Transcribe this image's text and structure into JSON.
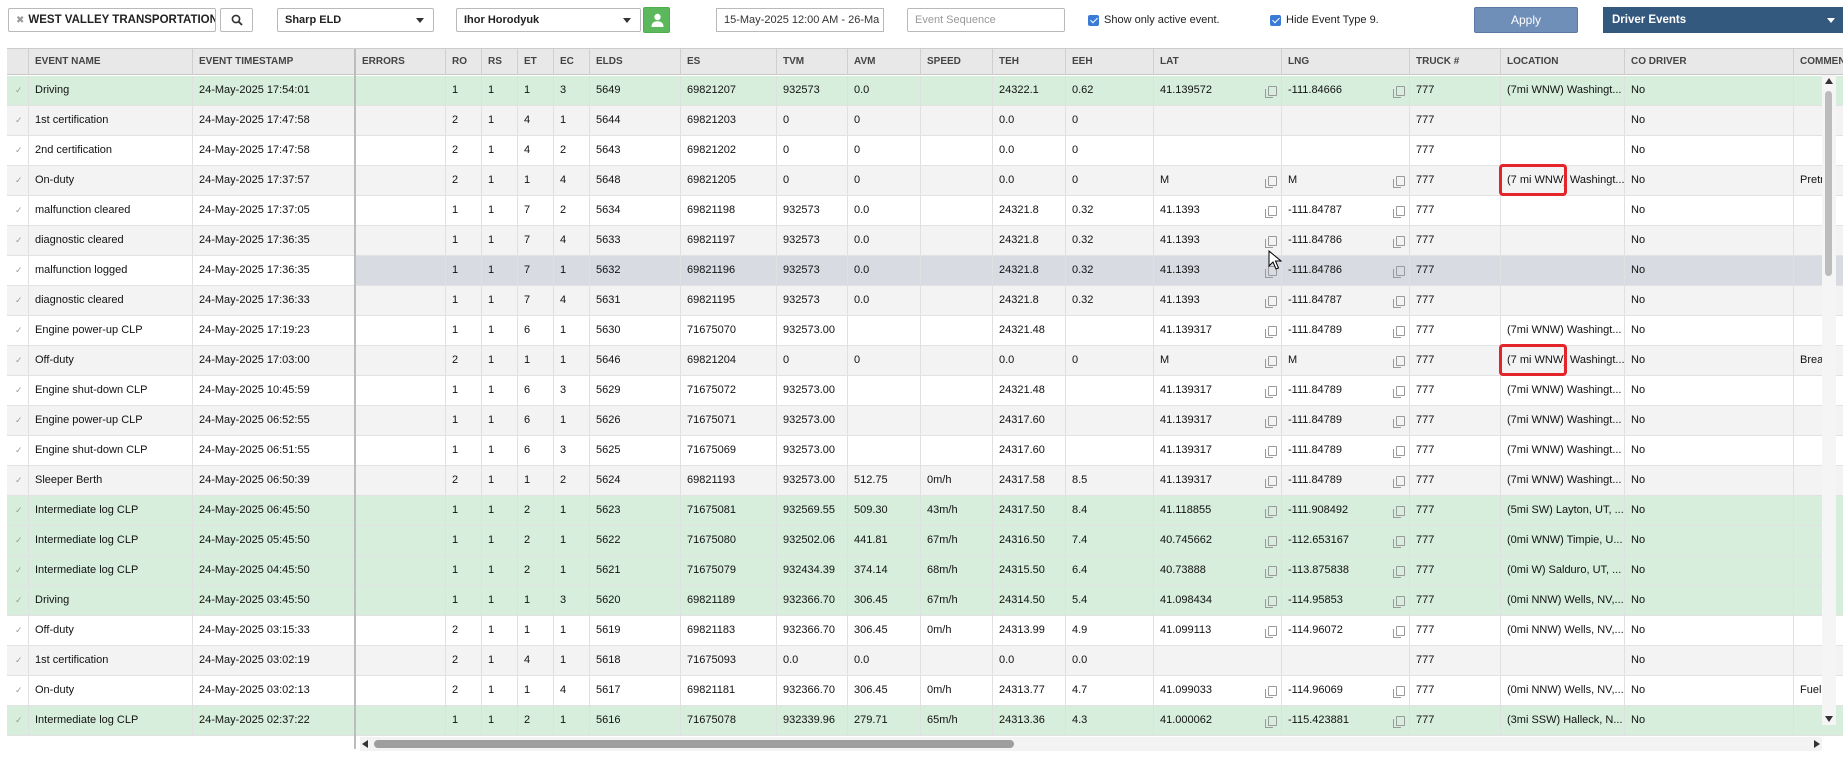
{
  "toolbar": {
    "company": "WEST VALLEY TRANSPORTATION ...",
    "eld": "Sharp ELD",
    "driver": "Ihor Horodyuk",
    "date_range": "15-May-2025 12:00 AM - 26-Ma",
    "event_sequence_placeholder": "Event Sequence",
    "show_active_label": "Show only active event.",
    "hide_type9_label": "Hide Event Type 9.",
    "apply_label": "Apply",
    "view_label": "Driver Events"
  },
  "columns": [
    "",
    "EVENT NAME",
    "EVENT TIMESTAMP",
    "ERRORS",
    "RO",
    "RS",
    "ET",
    "EC",
    "ELDS",
    "ES",
    "TVM",
    "AVM",
    "SPEED",
    "TEH",
    "EEH",
    "LAT",
    "LNG",
    "TRUCK #",
    "LOCATION",
    "CO DRIVER",
    "COMMEN"
  ],
  "rows": [
    {
      "style": "green",
      "name": "Driving",
      "ts": "24-May-2025 17:54:01",
      "ro": "1",
      "rs": "1",
      "et": "1",
      "ec": "3",
      "elds": "5649",
      "es": "69821207",
      "tvm": "932573",
      "avm": "0.0",
      "speed": "",
      "teh": "24322.1",
      "eeh": "0.62",
      "lat": "41.139572",
      "lng": "-111.84666",
      "truck": "777",
      "loc": "(7mi WNW) Washingt...",
      "co": "No",
      "com": ""
    },
    {
      "style": "gray",
      "name": "1st certification",
      "ts": "24-May-2025 17:47:58",
      "ro": "2",
      "rs": "1",
      "et": "4",
      "ec": "1",
      "elds": "5644",
      "es": "69821203",
      "tvm": "0",
      "avm": "0",
      "speed": "",
      "teh": "0.0",
      "eeh": "0",
      "lat": "",
      "lng": "",
      "truck": "777",
      "loc": "",
      "co": "No",
      "com": ""
    },
    {
      "style": "white",
      "name": "2nd certification",
      "ts": "24-May-2025 17:47:58",
      "ro": "2",
      "rs": "1",
      "et": "4",
      "ec": "2",
      "elds": "5643",
      "es": "69821202",
      "tvm": "0",
      "avm": "0",
      "speed": "",
      "teh": "0.0",
      "eeh": "0",
      "lat": "",
      "lng": "",
      "truck": "777",
      "loc": "",
      "co": "No",
      "com": ""
    },
    {
      "style": "gray",
      "name": "On-duty",
      "ts": "24-May-2025 17:37:57",
      "ro": "2",
      "rs": "1",
      "et": "1",
      "ec": "4",
      "elds": "5648",
      "es": "69821205",
      "tvm": "0",
      "avm": "0",
      "speed": "",
      "teh": "0.0",
      "eeh": "0",
      "lat": "M",
      "lng": "M",
      "truck": "777",
      "loc": "(7 mi WNW) Washingt...",
      "co": "No",
      "com": "Pretri"
    },
    {
      "style": "white",
      "name": "malfunction cleared",
      "ts": "24-May-2025 17:37:05",
      "ro": "1",
      "rs": "1",
      "et": "7",
      "ec": "2",
      "elds": "5634",
      "es": "69821198",
      "tvm": "932573",
      "avm": "0.0",
      "speed": "",
      "teh": "24321.8",
      "eeh": "0.32",
      "lat": "41.1393",
      "lng": "-111.84787",
      "truck": "777",
      "loc": "",
      "co": "No",
      "com": ""
    },
    {
      "style": "gray",
      "name": "diagnostic cleared",
      "ts": "24-May-2025 17:36:35",
      "ro": "1",
      "rs": "1",
      "et": "7",
      "ec": "4",
      "elds": "5633",
      "es": "69821197",
      "tvm": "932573",
      "avm": "0.0",
      "speed": "",
      "teh": "24321.8",
      "eeh": "0.32",
      "lat": "41.1393",
      "lng": "-111.84786",
      "truck": "777",
      "loc": "",
      "co": "No",
      "com": ""
    },
    {
      "style": "white sel",
      "name": "malfunction logged",
      "ts": "24-May-2025 17:36:35",
      "ro": "1",
      "rs": "1",
      "et": "7",
      "ec": "1",
      "elds": "5632",
      "es": "69821196",
      "tvm": "932573",
      "avm": "0.0",
      "speed": "",
      "teh": "24321.8",
      "eeh": "0.32",
      "lat": "41.1393",
      "lng": "-111.84786",
      "truck": "777",
      "loc": "",
      "co": "No",
      "com": ""
    },
    {
      "style": "gray",
      "name": "diagnostic cleared",
      "ts": "24-May-2025 17:36:33",
      "ro": "1",
      "rs": "1",
      "et": "7",
      "ec": "4",
      "elds": "5631",
      "es": "69821195",
      "tvm": "932573",
      "avm": "0.0",
      "speed": "",
      "teh": "24321.8",
      "eeh": "0.32",
      "lat": "41.1393",
      "lng": "-111.84787",
      "truck": "777",
      "loc": "",
      "co": "No",
      "com": ""
    },
    {
      "style": "white",
      "name": "Engine power-up CLP",
      "ts": "24-May-2025 17:19:23",
      "ro": "1",
      "rs": "1",
      "et": "6",
      "ec": "1",
      "elds": "5630",
      "es": "71675070",
      "tvm": "932573.00",
      "avm": "",
      "speed": "",
      "teh": "24321.48",
      "eeh": "",
      "lat": "41.139317",
      "lng": "-111.84789",
      "truck": "777",
      "loc": "(7mi WNW) Washingt...",
      "co": "No",
      "com": ""
    },
    {
      "style": "gray",
      "name": "Off-duty",
      "ts": "24-May-2025 17:03:00",
      "ro": "2",
      "rs": "1",
      "et": "1",
      "ec": "1",
      "elds": "5646",
      "es": "69821204",
      "tvm": "0",
      "avm": "0",
      "speed": "",
      "teh": "0.0",
      "eeh": "0",
      "lat": "M",
      "lng": "M",
      "truck": "777",
      "loc": "(7 mi WNW) Washingt...",
      "co": "No",
      "com": "Break"
    },
    {
      "style": "white",
      "name": "Engine shut-down CLP",
      "ts": "24-May-2025 10:45:59",
      "ro": "1",
      "rs": "1",
      "et": "6",
      "ec": "3",
      "elds": "5629",
      "es": "71675072",
      "tvm": "932573.00",
      "avm": "",
      "speed": "",
      "teh": "24321.48",
      "eeh": "",
      "lat": "41.139317",
      "lng": "-111.84789",
      "truck": "777",
      "loc": "(7mi WNW) Washingt...",
      "co": "No",
      "com": ""
    },
    {
      "style": "gray",
      "name": "Engine power-up CLP",
      "ts": "24-May-2025 06:52:55",
      "ro": "1",
      "rs": "1",
      "et": "6",
      "ec": "1",
      "elds": "5626",
      "es": "71675071",
      "tvm": "932573.00",
      "avm": "",
      "speed": "",
      "teh": "24317.60",
      "eeh": "",
      "lat": "41.139317",
      "lng": "-111.84789",
      "truck": "777",
      "loc": "(7mi WNW) Washingt...",
      "co": "No",
      "com": ""
    },
    {
      "style": "white",
      "name": "Engine shut-down CLP",
      "ts": "24-May-2025 06:51:55",
      "ro": "1",
      "rs": "1",
      "et": "6",
      "ec": "3",
      "elds": "5625",
      "es": "71675069",
      "tvm": "932573.00",
      "avm": "",
      "speed": "",
      "teh": "24317.60",
      "eeh": "",
      "lat": "41.139317",
      "lng": "-111.84789",
      "truck": "777",
      "loc": "(7mi WNW) Washingt...",
      "co": "No",
      "com": ""
    },
    {
      "style": "gray",
      "name": "Sleeper Berth",
      "ts": "24-May-2025 06:50:39",
      "ro": "2",
      "rs": "1",
      "et": "1",
      "ec": "2",
      "elds": "5624",
      "es": "69821193",
      "tvm": "932573.00",
      "avm": "512.75",
      "speed": "0m/h",
      "teh": "24317.58",
      "eeh": "8.5",
      "lat": "41.139317",
      "lng": "-111.84789",
      "truck": "777",
      "loc": "(7mi WNW) Washingt...",
      "co": "No",
      "com": ""
    },
    {
      "style": "green",
      "name": "Intermediate log CLP",
      "ts": "24-May-2025 06:45:50",
      "ro": "1",
      "rs": "1",
      "et": "2",
      "ec": "1",
      "elds": "5623",
      "es": "71675081",
      "tvm": "932569.55",
      "avm": "509.30",
      "speed": "43m/h",
      "teh": "24317.50",
      "eeh": "8.4",
      "lat": "41.118855",
      "lng": "-111.908492",
      "truck": "777",
      "loc": "(5mi SW) Layton, UT, ...",
      "co": "No",
      "com": ""
    },
    {
      "style": "green",
      "name": "Intermediate log CLP",
      "ts": "24-May-2025 05:45:50",
      "ro": "1",
      "rs": "1",
      "et": "2",
      "ec": "1",
      "elds": "5622",
      "es": "71675080",
      "tvm": "932502.06",
      "avm": "441.81",
      "speed": "67m/h",
      "teh": "24316.50",
      "eeh": "7.4",
      "lat": "40.745662",
      "lng": "-112.653167",
      "truck": "777",
      "loc": "(0mi WNW) Timpie, U...",
      "co": "No",
      "com": ""
    },
    {
      "style": "green",
      "name": "Intermediate log CLP",
      "ts": "24-May-2025 04:45:50",
      "ro": "1",
      "rs": "1",
      "et": "2",
      "ec": "1",
      "elds": "5621",
      "es": "71675079",
      "tvm": "932434.39",
      "avm": "374.14",
      "speed": "68m/h",
      "teh": "24315.50",
      "eeh": "6.4",
      "lat": "40.73888",
      "lng": "-113.875838",
      "truck": "777",
      "loc": "(0mi W) Salduro, UT, ...",
      "co": "No",
      "com": ""
    },
    {
      "style": "green",
      "name": "Driving",
      "ts": "24-May-2025 03:45:50",
      "ro": "1",
      "rs": "1",
      "et": "1",
      "ec": "3",
      "elds": "5620",
      "es": "69821189",
      "tvm": "932366.70",
      "avm": "306.45",
      "speed": "67m/h",
      "teh": "24314.50",
      "eeh": "5.4",
      "lat": "41.098434",
      "lng": "-114.95853",
      "truck": "777",
      "loc": "(0mi NNW) Wells, NV,...",
      "co": "No",
      "com": ""
    },
    {
      "style": "white",
      "name": "Off-duty",
      "ts": "24-May-2025 03:15:33",
      "ro": "2",
      "rs": "1",
      "et": "1",
      "ec": "1",
      "elds": "5619",
      "es": "69821183",
      "tvm": "932366.70",
      "avm": "306.45",
      "speed": "0m/h",
      "teh": "24313.99",
      "eeh": "4.9",
      "lat": "41.099113",
      "lng": "-114.96072",
      "truck": "777",
      "loc": "(0mi NNW) Wells, NV,...",
      "co": "No",
      "com": ""
    },
    {
      "style": "gray",
      "name": "1st certification",
      "ts": "24-May-2025 03:02:19",
      "ro": "2",
      "rs": "1",
      "et": "4",
      "ec": "1",
      "elds": "5618",
      "es": "71675093",
      "tvm": "0.0",
      "avm": "0.0",
      "speed": "",
      "teh": "0.0",
      "eeh": "0.0",
      "lat": "",
      "lng": "",
      "truck": "777",
      "loc": "",
      "co": "No",
      "com": ""
    },
    {
      "style": "white",
      "name": "On-duty",
      "ts": "24-May-2025 03:02:13",
      "ro": "2",
      "rs": "1",
      "et": "1",
      "ec": "4",
      "elds": "5617",
      "es": "69821181",
      "tvm": "932366.70",
      "avm": "306.45",
      "speed": "0m/h",
      "teh": "24313.77",
      "eeh": "4.7",
      "lat": "41.099033",
      "lng": "-114.96069",
      "truck": "777",
      "loc": "(0mi NNW) Wells, NV,...",
      "co": "No",
      "com": "Fuel"
    },
    {
      "style": "green",
      "name": "Intermediate log CLP",
      "ts": "24-May-2025 02:37:22",
      "ro": "1",
      "rs": "1",
      "et": "2",
      "ec": "1",
      "elds": "5616",
      "es": "71675078",
      "tvm": "932339.96",
      "avm": "279.71",
      "speed": "65m/h",
      "teh": "24313.36",
      "eeh": "4.3",
      "lat": "41.000062",
      "lng": "-115.423881",
      "truck": "777",
      "loc": "(3mi SSW) Halleck, N...",
      "co": "No",
      "com": ""
    }
  ]
}
